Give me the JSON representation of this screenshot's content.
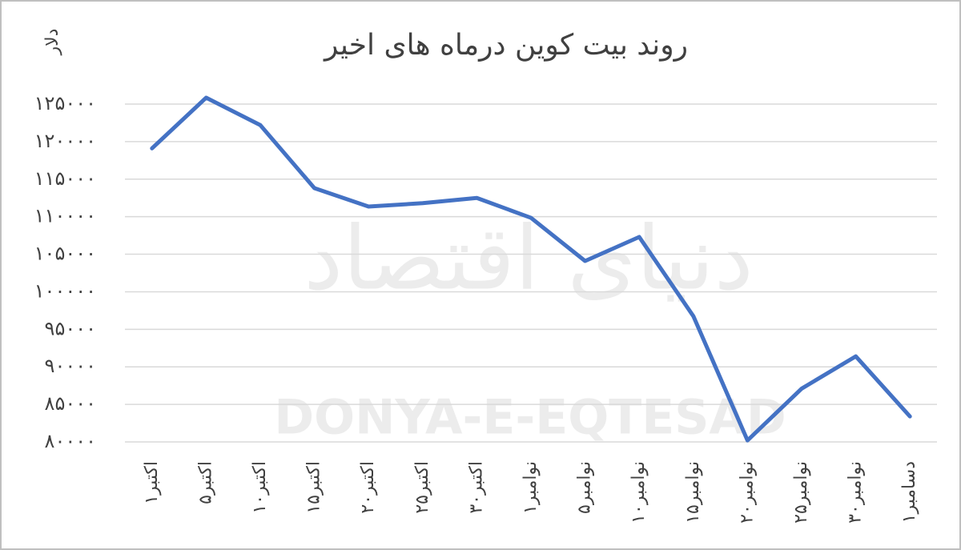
{
  "chart_data": {
    "type": "line",
    "title": "روند بیت کوین درماه های اخیر",
    "y_label": "دلار",
    "watermark": "DONYA-E-EQTESAD",
    "watermark_logo": "دنیای اقتصاد",
    "categories": [
      "۱اکتبر",
      "۵اکتبر",
      "۱۰اکتبر",
      "۱۵اکتبر",
      "۲۰اکتبر",
      "۲۵اکتبر",
      "۳۰اکتبر",
      "۱نوامبر",
      "۵نوامبر",
      "۱۰نوامبر",
      "۱۵نوامبر",
      "۲۰نوامبر",
      "۲۵نوامبر",
      "۳۰نوامبر",
      "۱دسامبر"
    ],
    "series": [
      {
        "name": "بیت کوین",
        "color": "#4472c4",
        "values": [
          119100,
          125850,
          122200,
          113800,
          111350,
          111800,
          112500,
          109850,
          104100,
          107300,
          96750,
          80200,
          87100,
          91400,
          83400
        ]
      }
    ],
    "ylim": [
      80000,
      125000
    ],
    "yticks": [
      {
        "value": 80000,
        "label": "۸۰۰۰۰"
      },
      {
        "value": 85000,
        "label": "۸۵۰۰۰"
      },
      {
        "value": 90000,
        "label": "۹۰۰۰۰"
      },
      {
        "value": 95000,
        "label": "۹۵۰۰۰"
      },
      {
        "value": 100000,
        "label": "۱۰۰۰۰۰"
      },
      {
        "value": 105000,
        "label": "۱۰۵۰۰۰"
      },
      {
        "value": 110000,
        "label": "۱۱۰۰۰۰"
      },
      {
        "value": 115000,
        "label": "۱۱۵۰۰۰"
      },
      {
        "value": 120000,
        "label": "۱۲۰۰۰۰"
      },
      {
        "value": 125000,
        "label": "۱۲۵۰۰۰"
      }
    ],
    "grid": true
  }
}
